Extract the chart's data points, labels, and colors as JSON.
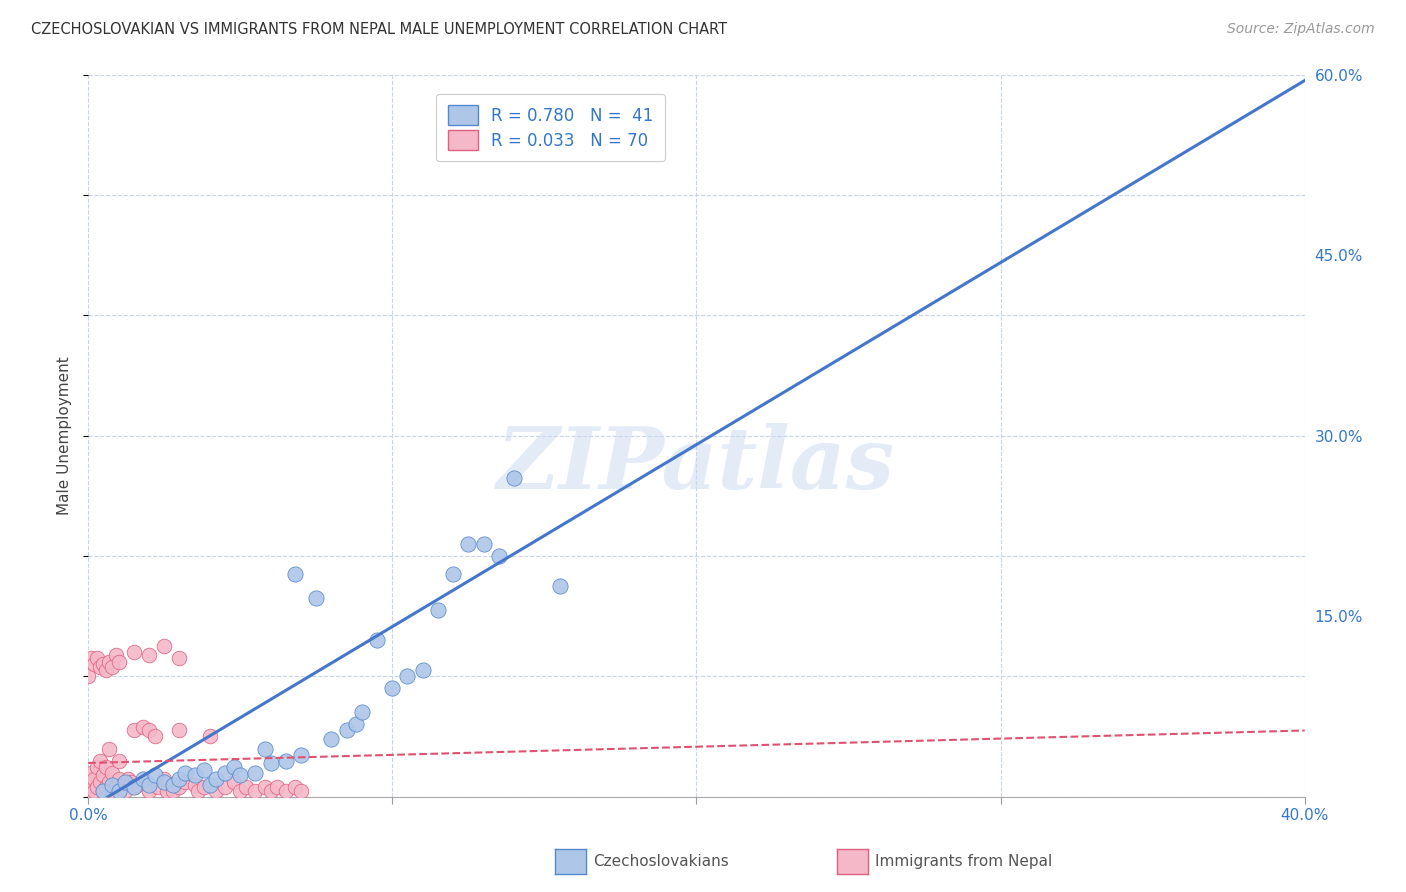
{
  "title": "CZECHOSLOVAKIAN VS IMMIGRANTS FROM NEPAL MALE UNEMPLOYMENT CORRELATION CHART",
  "source": "Source: ZipAtlas.com",
  "ylabel": "Male Unemployment",
  "series1_color": "#aec6e8",
  "series1_edge_color": "#5588cc",
  "series1_line_color": "#4477cc",
  "series2_color": "#f5b8c8",
  "series2_edge_color": "#e06080",
  "series2_line_color": "#e05070",
  "background_color": "#ffffff",
  "grid_color": "#c8d4e8",
  "watermark": "ZIPatlas",
  "xlim": [
    0.0,
    0.4
  ],
  "ylim": [
    0.0,
    0.6
  ],
  "czech_x": [
    0.005,
    0.008,
    0.01,
    0.012,
    0.015,
    0.018,
    0.02,
    0.022,
    0.025,
    0.028,
    0.03,
    0.032,
    0.035,
    0.038,
    0.04,
    0.042,
    0.045,
    0.048,
    0.05,
    0.055,
    0.058,
    0.06,
    0.065,
    0.068,
    0.07,
    0.075,
    0.08,
    0.085,
    0.088,
    0.09,
    0.095,
    0.1,
    0.105,
    0.11,
    0.115,
    0.12,
    0.125,
    0.13,
    0.135,
    0.14,
    0.155
  ],
  "czech_y": [
    0.005,
    0.01,
    0.005,
    0.012,
    0.008,
    0.015,
    0.01,
    0.018,
    0.012,
    0.01,
    0.015,
    0.02,
    0.018,
    0.022,
    0.01,
    0.015,
    0.02,
    0.025,
    0.018,
    0.02,
    0.04,
    0.028,
    0.03,
    0.185,
    0.035,
    0.165,
    0.048,
    0.055,
    0.06,
    0.07,
    0.13,
    0.09,
    0.1,
    0.105,
    0.155,
    0.185,
    0.21,
    0.21,
    0.2,
    0.265,
    0.175
  ],
  "nepal_x": [
    0.0,
    0.001,
    0.001,
    0.002,
    0.002,
    0.003,
    0.003,
    0.004,
    0.004,
    0.005,
    0.005,
    0.006,
    0.006,
    0.007,
    0.007,
    0.008,
    0.008,
    0.009,
    0.01,
    0.01,
    0.011,
    0.012,
    0.013,
    0.014,
    0.015,
    0.015,
    0.016,
    0.018,
    0.019,
    0.02,
    0.02,
    0.022,
    0.023,
    0.025,
    0.026,
    0.028,
    0.03,
    0.03,
    0.032,
    0.035,
    0.036,
    0.038,
    0.04,
    0.042,
    0.045,
    0.048,
    0.05,
    0.052,
    0.055,
    0.058,
    0.06,
    0.062,
    0.065,
    0.068,
    0.07,
    0.0,
    0.001,
    0.002,
    0.003,
    0.004,
    0.005,
    0.006,
    0.007,
    0.008,
    0.009,
    0.01,
    0.015,
    0.02,
    0.025,
    0.03
  ],
  "nepal_y": [
    0.005,
    0.01,
    0.02,
    0.005,
    0.015,
    0.008,
    0.025,
    0.012,
    0.03,
    0.005,
    0.018,
    0.008,
    0.025,
    0.012,
    0.04,
    0.005,
    0.02,
    0.008,
    0.015,
    0.03,
    0.01,
    0.005,
    0.015,
    0.012,
    0.055,
    0.008,
    0.01,
    0.058,
    0.012,
    0.055,
    0.005,
    0.05,
    0.008,
    0.015,
    0.005,
    0.005,
    0.055,
    0.008,
    0.012,
    0.01,
    0.005,
    0.008,
    0.05,
    0.005,
    0.008,
    0.012,
    0.005,
    0.008,
    0.005,
    0.008,
    0.005,
    0.008,
    0.005,
    0.008,
    0.005,
    0.1,
    0.115,
    0.11,
    0.115,
    0.108,
    0.11,
    0.105,
    0.112,
    0.108,
    0.118,
    0.112,
    0.12,
    0.118,
    0.125,
    0.115
  ],
  "czech_fit_x0": 0.0,
  "czech_fit_x1": 0.4,
  "czech_fit_y0": -0.01,
  "czech_fit_y1": 0.595,
  "nepal_fit_x0": 0.0,
  "nepal_fit_x1": 0.4,
  "nepal_fit_y0": 0.028,
  "nepal_fit_y1": 0.055
}
